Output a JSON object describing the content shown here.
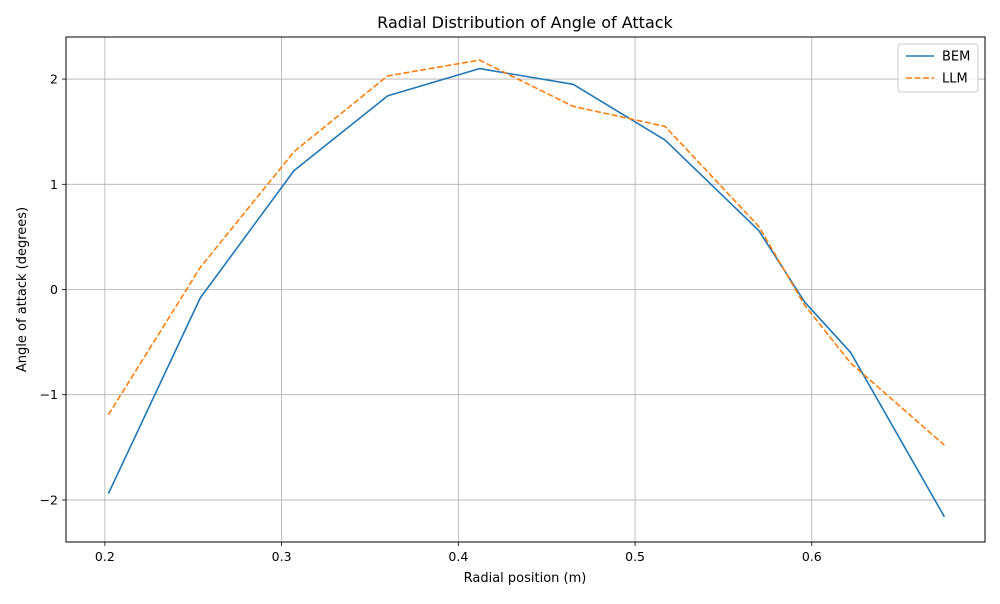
{
  "chart_data": {
    "type": "line",
    "title": "Radial Distribution of Angle of Attack",
    "xlabel": "Radial position (m)",
    "ylabel": "Angle of attack (degrees)",
    "xlim": [
      0.178,
      0.698
    ],
    "ylim": [
      -2.4,
      2.4
    ],
    "xticks": [
      0.2,
      0.3,
      0.4,
      0.5,
      0.6
    ],
    "xtick_labels": [
      "0.2",
      "0.3",
      "0.4",
      "0.5",
      "0.6"
    ],
    "yticks": [
      -2,
      -1,
      0,
      1,
      2
    ],
    "ytick_labels": [
      "−2",
      "−1",
      "0",
      "1",
      "2"
    ],
    "grid": true,
    "legend_position": "upper right",
    "series": [
      {
        "name": "BEM",
        "color": "#1f77b4",
        "style": "solid",
        "points": [
          [
            0.202,
            -1.94
          ],
          [
            0.254,
            -0.08
          ],
          [
            0.307,
            1.13
          ],
          [
            0.36,
            1.84
          ],
          [
            0.412,
            2.1
          ],
          [
            0.465,
            1.95
          ],
          [
            0.517,
            1.42
          ],
          [
            0.57,
            0.56
          ],
          [
            0.596,
            -0.12
          ],
          [
            0.622,
            -0.6
          ],
          [
            0.675,
            -2.16
          ]
        ]
      },
      {
        "name": "LLM",
        "color": "#ff7f0e",
        "style": "dashed",
        "points": [
          [
            0.202,
            -1.19
          ],
          [
            0.254,
            0.21
          ],
          [
            0.307,
            1.31
          ],
          [
            0.36,
            2.03
          ],
          [
            0.412,
            2.18
          ],
          [
            0.465,
            1.74
          ],
          [
            0.517,
            1.55
          ],
          [
            0.57,
            0.6
          ],
          [
            0.596,
            -0.15
          ],
          [
            0.622,
            -0.7
          ],
          [
            0.675,
            -1.48
          ]
        ]
      }
    ]
  }
}
